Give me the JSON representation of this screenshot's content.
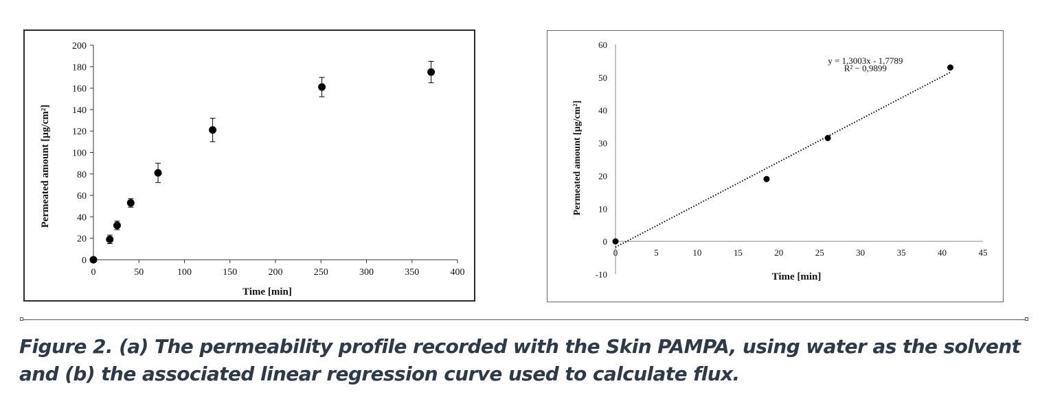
{
  "chart_data": [
    {
      "type": "scatter",
      "panel": "a",
      "xlabel": "Time [min]",
      "ylabel": "Permeated amount [µg/cm²]",
      "xlim": [
        0,
        400
      ],
      "ylim": [
        0,
        200
      ],
      "xticks": [
        0,
        50,
        100,
        150,
        200,
        250,
        300,
        350,
        400
      ],
      "yticks": [
        0,
        20,
        40,
        60,
        80,
        100,
        120,
        140,
        160,
        180,
        200
      ],
      "grid": false,
      "points": [
        {
          "x": 0,
          "y": 0,
          "err": 1
        },
        {
          "x": 18,
          "y": 19,
          "err": 4
        },
        {
          "x": 26,
          "y": 32,
          "err": 4
        },
        {
          "x": 41,
          "y": 53,
          "err": 4
        },
        {
          "x": 71,
          "y": 81,
          "err": 9
        },
        {
          "x": 131,
          "y": 121,
          "err": 11
        },
        {
          "x": 251,
          "y": 161,
          "err": 9
        },
        {
          "x": 371,
          "y": 175,
          "err": 10
        }
      ]
    },
    {
      "type": "scatter",
      "panel": "b",
      "xlabel": "Time [min]",
      "ylabel": "Permeated amount [µg/cm²]",
      "xlim": [
        0,
        45
      ],
      "ylim": [
        -10,
        60
      ],
      "xticks": [
        0,
        5,
        10,
        15,
        20,
        25,
        30,
        35,
        40,
        45
      ],
      "yticks": [
        -10,
        0,
        10,
        20,
        30,
        40,
        50,
        60
      ],
      "grid": false,
      "points": [
        {
          "x": 0,
          "y": 0
        },
        {
          "x": 18.5,
          "y": 19
        },
        {
          "x": 26,
          "y": 31.5
        },
        {
          "x": 41,
          "y": 53
        }
      ],
      "trendline": {
        "slope": 1.3003,
        "intercept": -1.7789,
        "style": "dotted"
      },
      "equation": "y = 1,3003x - 1,7789",
      "r2": "R² − 0,9899"
    }
  ],
  "caption": "Figure 2. (a) The permeability profile recorded with the Skin PAMPA, using water as the solvent and (b) the associated linear regression curve used to calculate flux.",
  "colors": {
    "marker": "#000000",
    "axis": "#333333",
    "caption": "#2f3a48"
  }
}
